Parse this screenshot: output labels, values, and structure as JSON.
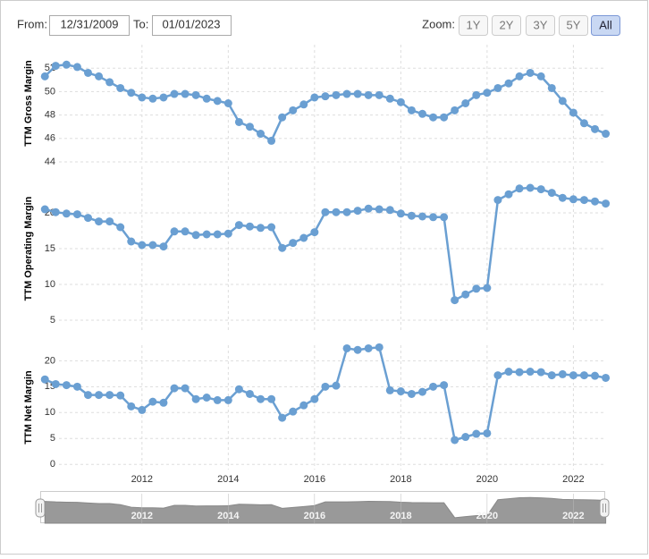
{
  "controls": {
    "from_label": "From:",
    "from": "12/31/2009",
    "to_label": "To:",
    "to": "01/01/2023",
    "zoom_label": "Zoom:",
    "zoom": [
      "1Y",
      "2Y",
      "3Y",
      "5Y",
      "All"
    ],
    "active": "All"
  },
  "chart_data": [
    {
      "type": "line",
      "ylabel": "TTM Gross Margin",
      "color": "#6a9fd2",
      "x": [
        2009.75,
        2010,
        2010.25,
        2010.5,
        2010.75,
        2011,
        2011.25,
        2011.5,
        2011.75,
        2012,
        2012.25,
        2012.5,
        2012.75,
        2013,
        2013.25,
        2013.5,
        2013.75,
        2014,
        2014.25,
        2014.5,
        2014.75,
        2015,
        2015.25,
        2015.5,
        2015.75,
        2016,
        2016.25,
        2016.5,
        2016.75,
        2017,
        2017.25,
        2017.5,
        2017.75,
        2018,
        2018.25,
        2018.5,
        2018.75,
        2019,
        2019.25,
        2019.5,
        2019.75,
        2020,
        2020.25,
        2020.5,
        2020.75,
        2021,
        2021.25,
        2021.5,
        2021.75,
        2022,
        2022.25,
        2022.5,
        2022.75
      ],
      "values": [
        51.3,
        52.2,
        52.3,
        52.1,
        51.6,
        51.3,
        50.8,
        50.3,
        49.9,
        49.5,
        49.4,
        49.5,
        49.8,
        49.8,
        49.7,
        49.4,
        49.2,
        49.0,
        47.4,
        47.0,
        46.4,
        45.8,
        47.8,
        48.4,
        48.9,
        49.5,
        49.6,
        49.7,
        49.8,
        49.8,
        49.7,
        49.7,
        49.4,
        49.1,
        48.4,
        48.1,
        47.8,
        47.8,
        48.4,
        49.0,
        49.7,
        49.9,
        50.3,
        50.7,
        51.3,
        51.6,
        51.3,
        50.3,
        49.2,
        48.2,
        47.3,
        46.8,
        46.4
      ],
      "xlim": [
        2009.6,
        2022.8
      ],
      "ylim": [
        44,
        54
      ],
      "xticks": [
        2012,
        2014,
        2016,
        2018,
        2020,
        2022
      ],
      "yticks": [
        44,
        46,
        48,
        50,
        52
      ],
      "grid": true
    },
    {
      "type": "line",
      "ylabel": "TTM Operating Margin",
      "color": "#6a9fd2",
      "x": [
        2009.75,
        2010,
        2010.25,
        2010.5,
        2010.75,
        2011,
        2011.25,
        2011.5,
        2011.75,
        2012,
        2012.25,
        2012.5,
        2012.75,
        2013,
        2013.25,
        2013.5,
        2013.75,
        2014,
        2014.25,
        2014.5,
        2014.75,
        2015,
        2015.25,
        2015.5,
        2015.75,
        2016,
        2016.25,
        2016.5,
        2016.75,
        2017,
        2017.25,
        2017.5,
        2017.75,
        2018,
        2018.25,
        2018.5,
        2018.75,
        2019,
        2019.25,
        2019.5,
        2019.75,
        2020,
        2020.25,
        2020.5,
        2020.75,
        2021,
        2021.25,
        2021.5,
        2021.75,
        2022,
        2022.25,
        2022.5,
        2022.75
      ],
      "values": [
        20.5,
        20.1,
        19.9,
        19.8,
        19.3,
        18.8,
        18.8,
        18.0,
        16.0,
        15.5,
        15.5,
        15.3,
        17.4,
        17.4,
        16.9,
        17.0,
        17.0,
        17.1,
        18.3,
        18.1,
        17.9,
        18.0,
        15.1,
        15.8,
        16.5,
        17.3,
        20.1,
        20.1,
        20.1,
        20.3,
        20.6,
        20.5,
        20.4,
        19.9,
        19.6,
        19.5,
        19.4,
        19.4,
        7.8,
        8.6,
        9.4,
        9.5,
        21.8,
        22.6,
        23.4,
        23.5,
        23.3,
        22.8,
        22.1,
        21.9,
        21.8,
        21.6,
        21.3
      ],
      "xlim": [
        2009.6,
        2022.8
      ],
      "ylim": [
        3.5,
        26.5
      ],
      "xticks": [
        2012,
        2014,
        2016,
        2018,
        2020,
        2022
      ],
      "yticks": [
        5,
        10,
        15,
        20
      ],
      "grid": true
    },
    {
      "type": "line",
      "ylabel": "TTM Net Margin",
      "color": "#6a9fd2",
      "x": [
        2009.75,
        2010,
        2010.25,
        2010.5,
        2010.75,
        2011,
        2011.25,
        2011.5,
        2011.75,
        2012,
        2012.25,
        2012.5,
        2012.75,
        2013,
        2013.25,
        2013.5,
        2013.75,
        2014,
        2014.25,
        2014.5,
        2014.75,
        2015,
        2015.25,
        2015.5,
        2015.75,
        2016,
        2016.25,
        2016.5,
        2016.75,
        2017,
        2017.25,
        2017.5,
        2017.75,
        2018,
        2018.25,
        2018.5,
        2018.75,
        2019,
        2019.25,
        2019.5,
        2019.75,
        2020,
        2020.25,
        2020.5,
        2020.75,
        2021,
        2021.25,
        2021.5,
        2021.75,
        2022,
        2022.25,
        2022.5,
        2022.75
      ],
      "values": [
        16.4,
        15.5,
        15.3,
        15.0,
        13.4,
        13.4,
        13.4,
        13.3,
        11.2,
        10.5,
        12.1,
        11.9,
        14.7,
        14.7,
        12.6,
        12.9,
        12.4,
        12.4,
        14.5,
        13.6,
        12.6,
        12.6,
        9.0,
        10.2,
        11.4,
        12.6,
        15.0,
        15.2,
        22.4,
        22.1,
        22.4,
        22.6,
        14.3,
        14.1,
        13.6,
        14.0,
        15.0,
        15.3,
        4.7,
        5.3,
        5.9,
        6.0,
        17.2,
        17.9,
        17.8,
        17.9,
        17.8,
        17.2,
        17.4,
        17.2,
        17.2,
        17.1,
        16.7
      ],
      "xlim": [
        2009.6,
        2022.8
      ],
      "ylim": [
        -1,
        23
      ],
      "xticks": [
        2012,
        2014,
        2016,
        2018,
        2020,
        2022
      ],
      "yticks": [
        0,
        5,
        10,
        15,
        20
      ],
      "grid": true
    }
  ],
  "navigator": {
    "xlim": [
      2009.6,
      2022.8
    ],
    "xticks": [
      2012,
      2014,
      2016,
      2018,
      2020,
      2022
    ]
  }
}
